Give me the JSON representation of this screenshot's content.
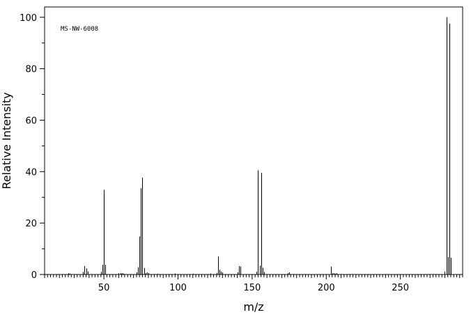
{
  "chart_data": {
    "type": "bar",
    "title": "",
    "annotation": "MS-NW-6008",
    "xlabel": "m/z",
    "ylabel": "Relative Intensity",
    "xlim": [
      10,
      292
    ],
    "ylim": [
      0,
      104
    ],
    "xticks_major": [
      50,
      100,
      150,
      200,
      250
    ],
    "yticks_major": [
      0,
      20,
      40,
      60,
      80,
      100
    ],
    "grid": false,
    "legend": "none",
    "series": [
      {
        "x": [
          26,
          27,
          36,
          37,
          38,
          39,
          48,
          49,
          50,
          51,
          60,
          61,
          62,
          63,
          72,
          73,
          74,
          75,
          76,
          77,
          78,
          79,
          80,
          86,
          98,
          110,
          122,
          126,
          127,
          128,
          129,
          130,
          140,
          141,
          142,
          153,
          154,
          155,
          156,
          157,
          158,
          174,
          175,
          203,
          204,
          205,
          206,
          207,
          280,
          281,
          282,
          283,
          284
        ],
        "values": [
          0.5,
          0.4,
          1.0,
          3.2,
          2.4,
          1.2,
          1.0,
          3.8,
          32.9,
          3.8,
          0.5,
          0.6,
          0.5,
          0.4,
          0.8,
          2.8,
          14.8,
          33.5,
          37.6,
          2.5,
          0.6,
          0.8,
          0.5,
          0.3,
          0.4,
          0.3,
          0.4,
          0.6,
          7.0,
          1.8,
          1.2,
          0.8,
          0.8,
          3.3,
          3.1,
          1.1,
          40.5,
          3.5,
          39.5,
          2.6,
          1.0,
          0.5,
          0.8,
          3.1,
          0.5,
          0.5,
          0.4,
          0.5,
          1.2,
          100.0,
          6.8,
          97.5,
          6.5
        ]
      }
    ],
    "style": {
      "line_color": "#000000",
      "background": "#ffffff"
    }
  }
}
